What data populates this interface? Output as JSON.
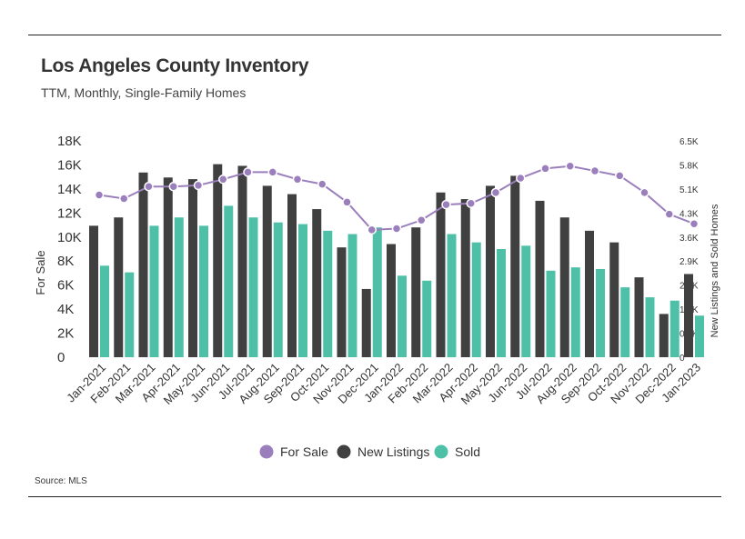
{
  "colors": {
    "for_sale": "#9b7fbd",
    "new_listings": "#404040",
    "sold": "#4fc0a8",
    "text": "#333333"
  },
  "chart_data": {
    "type": "bar",
    "title": "Los Angeles County Inventory",
    "subtitle": "TTM, Monthly, Single-Family Homes",
    "source": "Source: MLS",
    "ylabel": "For Sale",
    "ylabel_right": "New Listings and Sold Homes",
    "ylim": [
      0,
      18000
    ],
    "ylim_right": [
      0,
      6500
    ],
    "yticks": [
      "0",
      "2K",
      "4K",
      "6K",
      "8K",
      "10K",
      "12K",
      "14K",
      "16K",
      "18K"
    ],
    "yticks_right": [
      "0",
      "0.7K",
      "1.4K",
      "2.2K",
      "2.9K",
      "3.6K",
      "4.3K",
      "5.1K",
      "5.8K",
      "6.5K"
    ],
    "categories": [
      "Jan-2021",
      "Feb-2021",
      "Mar-2021",
      "Apr-2021",
      "May-2021",
      "Jun-2021",
      "Jul-2021",
      "Aug-2021",
      "Sep-2021",
      "Oct-2021",
      "Nov-2021",
      "Dec-2021",
      "Jan-2022",
      "Feb-2022",
      "Mar-2022",
      "Apr-2022",
      "May-2022",
      "Jun-2022",
      "Jul-2022",
      "Aug-2022",
      "Sep-2022",
      "Oct-2022",
      "Nov-2022",
      "Dec-2022",
      "Jan-2023"
    ],
    "series": [
      {
        "name": "For Sale",
        "axis": "left",
        "kind": "line",
        "values": [
          13500,
          13200,
          14200,
          14200,
          14300,
          14800,
          15400,
          15400,
          14800,
          14400,
          12900,
          10600,
          10700,
          11400,
          12700,
          12800,
          13700,
          14900,
          15700,
          15900,
          15500,
          15100,
          13700,
          11900,
          11100
        ]
      },
      {
        "name": "New Listings",
        "axis": "right",
        "kind": "bar",
        "values": [
          3950,
          4200,
          5550,
          5400,
          5350,
          5800,
          5750,
          5150,
          4900,
          4450,
          3300,
          2050,
          3400,
          3900,
          4950,
          4750,
          5150,
          5450,
          4700,
          4200,
          3800,
          3450,
          2400,
          1300,
          2500
        ]
      },
      {
        "name": "Sold",
        "axis": "right",
        "kind": "bar",
        "values": [
          2750,
          2550,
          3950,
          4200,
          3950,
          4550,
          4200,
          4050,
          4000,
          3800,
          3700,
          3900,
          2450,
          2300,
          3700,
          3450,
          3250,
          3350,
          2600,
          2700,
          2650,
          2100,
          1800,
          1700,
          1250
        ]
      }
    ],
    "legend": [
      {
        "label": "For Sale",
        "color": "#9b7fbd"
      },
      {
        "label": "New Listings",
        "color": "#404040"
      },
      {
        "label": "Sold",
        "color": "#4fc0a8"
      }
    ]
  }
}
